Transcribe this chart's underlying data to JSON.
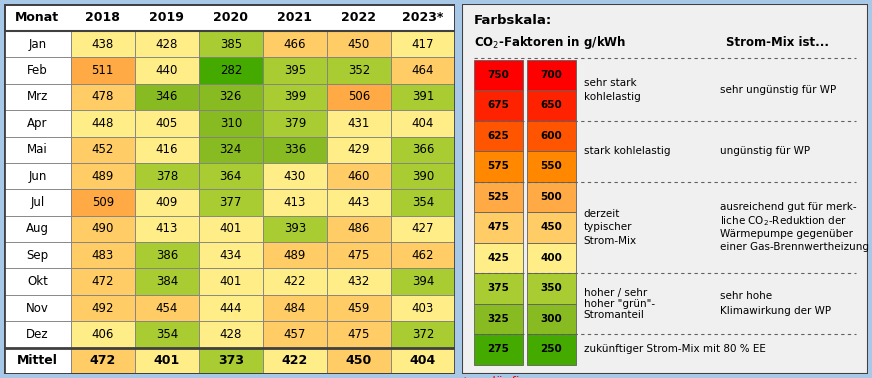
{
  "months": [
    "Jan",
    "Feb",
    "Mrz",
    "Apr",
    "Mai",
    "Jun",
    "Jul",
    "Aug",
    "Sep",
    "Okt",
    "Nov",
    "Dez",
    "Mittel"
  ],
  "years": [
    "2018",
    "2019",
    "2020",
    "2021",
    "2022",
    "2023*"
  ],
  "values": [
    [
      438,
      428,
      385,
      466,
      450,
      417
    ],
    [
      511,
      440,
      282,
      395,
      352,
      464
    ],
    [
      478,
      346,
      326,
      399,
      506,
      391
    ],
    [
      448,
      405,
      310,
      379,
      431,
      404
    ],
    [
      452,
      416,
      324,
      336,
      429,
      366
    ],
    [
      489,
      378,
      364,
      430,
      460,
      390
    ],
    [
      509,
      409,
      377,
      413,
      443,
      354
    ],
    [
      490,
      413,
      401,
      393,
      486,
      427
    ],
    [
      483,
      386,
      434,
      489,
      475,
      462
    ],
    [
      472,
      384,
      401,
      422,
      432,
      394
    ],
    [
      492,
      454,
      444,
      484,
      459,
      403
    ],
    [
      406,
      354,
      428,
      457,
      475,
      372
    ],
    [
      472,
      401,
      373,
      422,
      450,
      404
    ]
  ],
  "legend_values_left": [
    750,
    675,
    625,
    575,
    525,
    475,
    425,
    375,
    325,
    275
  ],
  "legend_values_right": [
    700,
    650,
    600,
    550,
    500,
    450,
    400,
    350,
    300,
    250
  ],
  "legend_colors": [
    "#FF0000",
    "#FF2200",
    "#FF5500",
    "#FF8800",
    "#FFAA44",
    "#FFCC66",
    "#FFEE88",
    "#AACC33",
    "#88BB22",
    "#44AA00"
  ],
  "fig_bg": "#A8C8E8",
  "panel_bg": "#F0F0F0",
  "table_bg": "#FFFFFF"
}
